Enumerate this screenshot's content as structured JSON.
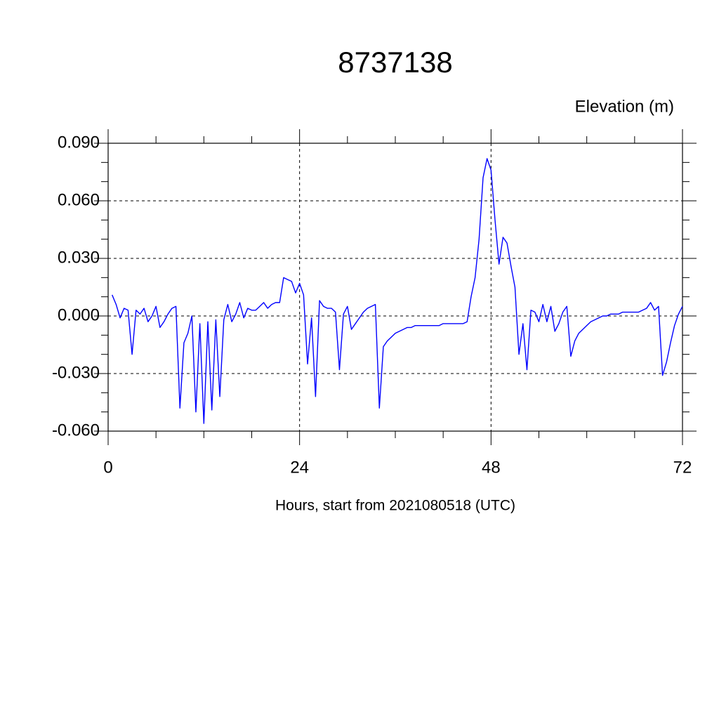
{
  "chart_data": {
    "type": "line",
    "title": "8737138",
    "subtitle": "Elevation (m)",
    "x_label": "Hours, start from 2021080518 (UTC)",
    "xlim": [
      0,
      72
    ],
    "xticks": [
      0,
      24,
      48,
      72
    ],
    "xminorticks": [
      6,
      12,
      18,
      30,
      36,
      42,
      54,
      60,
      66
    ],
    "ylim": [
      -0.06,
      0.09
    ],
    "yticks": [
      {
        "value": -0.06,
        "label": "-0.060"
      },
      {
        "value": -0.03,
        "label": "-0.030"
      },
      {
        "value": 0,
        "label": "0.000"
      },
      {
        "value": 0.03,
        "label": "0.030"
      },
      {
        "value": 0.06,
        "label": "0.060"
      },
      {
        "value": 0.09,
        "label": "0.090"
      }
    ],
    "yminorticks": [
      -0.05,
      -0.04,
      -0.02,
      -0.01,
      0.01,
      0.02,
      0.04,
      0.05,
      0.07,
      0.08
    ],
    "grid": true,
    "series": [
      {
        "color": "#0000ff",
        "x": [
          0.5,
          1,
          1.5,
          2,
          2.5,
          3,
          3.5,
          4,
          4.5,
          5,
          5.5,
          6,
          6.5,
          7,
          7.5,
          8,
          8.5,
          9,
          9.5,
          10,
          10.5,
          11,
          11.5,
          12,
          12.5,
          13,
          13.5,
          14,
          14.5,
          15,
          15.5,
          16,
          16.5,
          17,
          17.5,
          18,
          18.5,
          19,
          19.5,
          20,
          20.5,
          21,
          21.5,
          22,
          22.5,
          23,
          23.5,
          24,
          24.5,
          25,
          25.5,
          26,
          26.5,
          27,
          27.5,
          28,
          28.5,
          29,
          29.5,
          30,
          30.5,
          31,
          31.5,
          32,
          32.5,
          33,
          33.5,
          34,
          34.5,
          35,
          35.5,
          36,
          36.5,
          37,
          37.5,
          38,
          38.5,
          39,
          39.5,
          40,
          40.5,
          41,
          41.5,
          42,
          42.5,
          43,
          43.5,
          44,
          44.5,
          45,
          45.5,
          46,
          46.5,
          47,
          47.5,
          48,
          48.5,
          49,
          49.5,
          50,
          50.5,
          51,
          51.5,
          52,
          52.5,
          53,
          53.5,
          54,
          54.5,
          55,
          55.5,
          56,
          56.5,
          57,
          57.5,
          58,
          58.5,
          59,
          59.5,
          60,
          60.5,
          61,
          61.5,
          62,
          62.5,
          63,
          63.5,
          64,
          64.5,
          65,
          65.5,
          66,
          66.5,
          67,
          67.5,
          68,
          68.5,
          69,
          69.5,
          70,
          70.5,
          71,
          71.5,
          72
        ],
        "values": [
          0.011,
          0.006,
          -0.001,
          0.004,
          0.003,
          -0.02,
          0.003,
          0.001,
          0.004,
          -0.003,
          0.0,
          0.005,
          -0.006,
          -0.003,
          0.001,
          0.004,
          0.005,
          -0.048,
          -0.014,
          -0.009,
          0.0,
          -0.05,
          -0.004,
          -0.056,
          -0.003,
          -0.049,
          -0.002,
          -0.042,
          -0.002,
          0.006,
          -0.003,
          0.001,
          0.007,
          -0.001,
          0.004,
          0.003,
          0.003,
          0.005,
          0.007,
          0.004,
          0.006,
          0.007,
          0.007,
          0.02,
          0.019,
          0.018,
          0.012,
          0.017,
          0.011,
          -0.025,
          -0.001,
          -0.042,
          0.008,
          0.005,
          0.004,
          0.004,
          0.002,
          -0.028,
          0.001,
          0.005,
          -0.007,
          -0.004,
          -0.001,
          0.002,
          0.004,
          0.005,
          0.006,
          -0.048,
          -0.016,
          -0.013,
          -0.011,
          -0.009,
          -0.008,
          -0.007,
          -0.006,
          -0.006,
          -0.005,
          -0.005,
          -0.005,
          -0.005,
          -0.005,
          -0.005,
          -0.005,
          -0.004,
          -0.004,
          -0.004,
          -0.004,
          -0.004,
          -0.004,
          -0.003,
          0.01,
          0.02,
          0.04,
          0.072,
          0.082,
          0.076,
          0.05,
          0.027,
          0.041,
          0.038,
          0.026,
          0.015,
          -0.02,
          -0.004,
          -0.028,
          0.003,
          0.002,
          -0.003,
          0.006,
          -0.003,
          0.005,
          -0.008,
          -0.004,
          0.002,
          0.005,
          -0.021,
          -0.013,
          -0.009,
          -0.007,
          -0.005,
          -0.003,
          -0.002,
          -0.001,
          0.0,
          0.0,
          0.001,
          0.001,
          0.001,
          0.002,
          0.002,
          0.002,
          0.002,
          0.002,
          0.003,
          0.004,
          0.007,
          0.003,
          0.005,
          -0.031,
          -0.024,
          -0.014,
          -0.005,
          0.001,
          0.005
        ]
      }
    ]
  }
}
